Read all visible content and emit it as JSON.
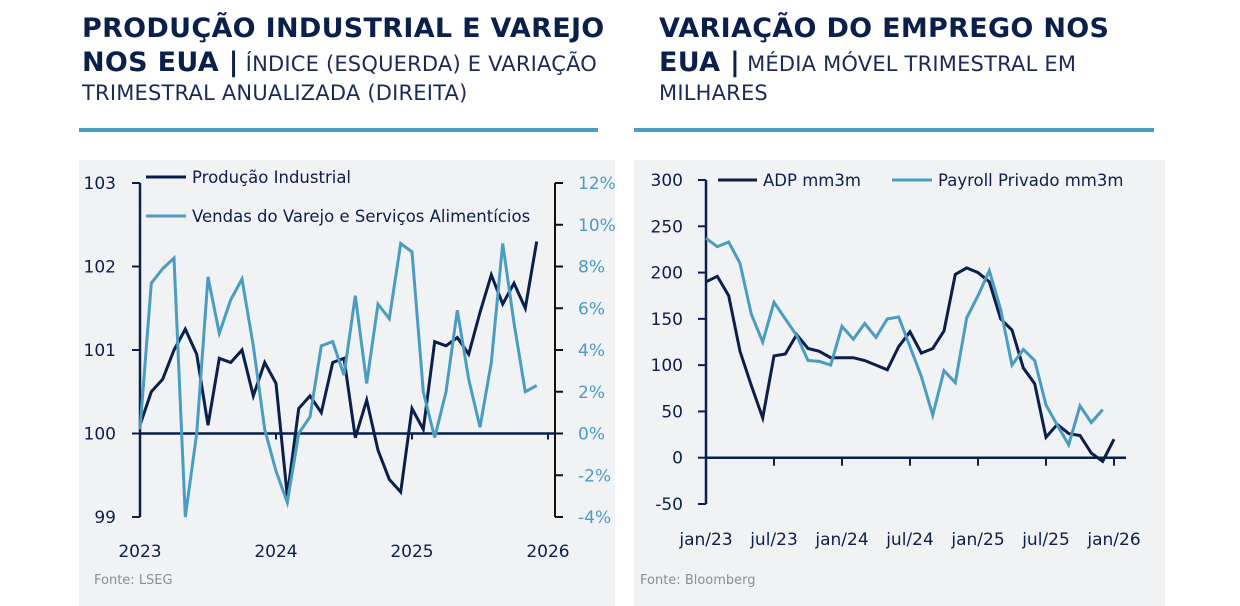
{
  "colors": {
    "navy": "#0b1f4b",
    "accent": "#4a9cc0",
    "panel": "#f1f2f4",
    "source": "#8a8d93"
  },
  "left": {
    "title_bold": "PRODUÇÃO INDUSTRIAL E VAREJO NOS EUA |",
    "title_light": " ÍNDICE (ESQUERDA) E VARIAÇÃO TRIMESTRAL ANUALIZADA (DIREITA)",
    "source": "Fonte: LSEG"
  },
  "right": {
    "title_bold": "VARIAÇÃO DO EMPREGO NOS EUA |",
    "title_light": " MÉDIA MÓVEL TRIMESTRAL EM MILHARES",
    "source": "Fonte: Bloomberg"
  },
  "chart_data": [
    {
      "type": "line",
      "title": "Produção Industrial e Varejo nos EUA",
      "subtitle": "Índice (esquerda) e variação trimestral anualizada (direita)",
      "x_tick_labels": [
        "2023",
        "2024",
        "2025",
        "2026"
      ],
      "x_start": "2023-01",
      "x_step": "month",
      "y_left": {
        "ylim": [
          99,
          103
        ],
        "ticks": [
          "99",
          "100",
          "101",
          "102",
          "103"
        ]
      },
      "y_right": {
        "ylim": [
          -4,
          12
        ],
        "ticks": [
          "-4%",
          "-2%",
          "0%",
          "2%",
          "4%",
          "6%",
          "8%",
          "10%",
          "12%"
        ]
      },
      "legend_position": "top-left",
      "grid": false,
      "series": [
        {
          "name": "Produção Industrial",
          "axis": "left",
          "color": "#0b1f4b",
          "values": [
            100.1,
            100.5,
            100.65,
            101.0,
            101.25,
            100.95,
            100.1,
            100.9,
            100.85,
            101.0,
            100.45,
            100.85,
            100.6,
            99.25,
            100.3,
            100.45,
            100.25,
            100.85,
            100.9,
            99.95,
            100.4,
            99.8,
            99.45,
            99.3,
            100.3,
            100.05,
            101.1,
            101.05,
            101.15,
            100.95,
            101.45,
            101.9,
            101.55,
            101.8,
            101.5,
            102.3
          ]
        },
        {
          "name": "Vendas do Varejo e Serviços Alimentícios",
          "axis": "right",
          "color": "#4a9cc0",
          "values": [
            0.2,
            7.2,
            7.9,
            8.4,
            -4.2,
            0.0,
            7.5,
            4.8,
            6.4,
            7.4,
            4.2,
            0.2,
            -1.8,
            -3.3,
            0.0,
            0.8,
            4.2,
            4.4,
            2.8,
            6.6,
            2.4,
            6.2,
            5.5,
            9.1,
            8.7,
            2.0,
            -0.2,
            2.0,
            5.9,
            2.6,
            0.3,
            3.4,
            9.1,
            5.3,
            2.0,
            2.3
          ]
        }
      ]
    },
    {
      "type": "line",
      "title": "Variação do Emprego nos EUA",
      "subtitle": "Média móvel trimestral em milhares",
      "x_tick_labels": [
        "jan/23",
        "jul/23",
        "jan/24",
        "jul/24",
        "jan/25",
        "jul/25",
        "jan/26"
      ],
      "x_start": "2023-01",
      "x_step": "month",
      "y": {
        "ylim": [
          -50,
          300
        ],
        "ticks": [
          "-50",
          "0",
          "50",
          "100",
          "150",
          "200",
          "250",
          "300"
        ]
      },
      "legend_position": "top",
      "grid": false,
      "series": [
        {
          "name": "ADP mm3m",
          "color": "#0b1f4b",
          "values": [
            190,
            196,
            175,
            115,
            78,
            43,
            110,
            112,
            133,
            118,
            115,
            108,
            108,
            108,
            105,
            100,
            95,
            120,
            136,
            113,
            118,
            137,
            198,
            205,
            200,
            190,
            150,
            138,
            97,
            80,
            22,
            36,
            26,
            24,
            5,
            -4,
            20
          ]
        },
        {
          "name": "Payroll Privado mm3m",
          "color": "#4a9cc0",
          "values": [
            237,
            228,
            233,
            210,
            155,
            125,
            168,
            150,
            132,
            105,
            104,
            100,
            142,
            128,
            145,
            130,
            150,
            152,
            120,
            88,
            46,
            94,
            81,
            151,
            175,
            202,
            160,
            100,
            117,
            105,
            57,
            35,
            14,
            56,
            38,
            52
          ]
        }
      ]
    }
  ]
}
